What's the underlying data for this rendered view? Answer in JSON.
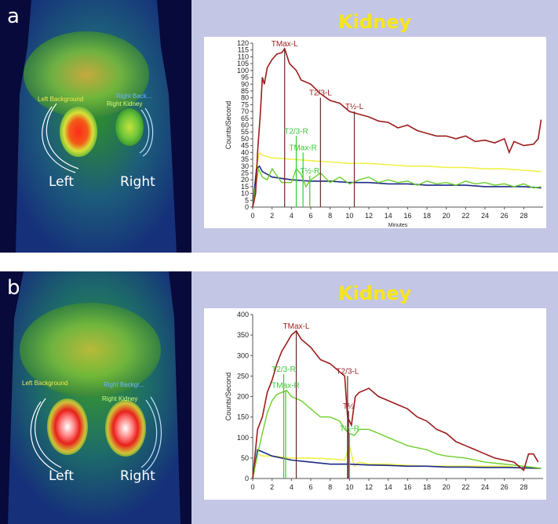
{
  "panels": [
    {
      "letter": "a",
      "image_labels": {
        "left": "Left",
        "right": "Right",
        "left_background": "Left Background",
        "right_background": "Right Back...",
        "right_kidney": "Right Kidney"
      }
    },
    {
      "letter": "b",
      "image_labels": {
        "left": "Left",
        "right": "Right",
        "left_background": "Left Background",
        "right_background": "Right Backgr...",
        "right_kidney": "Right Kidney"
      }
    }
  ],
  "chart_data": [
    {
      "type": "line",
      "title": "Kidney",
      "xlabel": "Minutes",
      "ylabel": "Counts/Second",
      "xlim": [
        0,
        30
      ],
      "ylim": [
        0,
        120
      ],
      "xticks": [
        0,
        2,
        4,
        6,
        8,
        10,
        12,
        14,
        16,
        18,
        20,
        22,
        24,
        26,
        28
      ],
      "yticks": [
        0,
        5,
        10,
        15,
        20,
        25,
        30,
        35,
        40,
        45,
        50,
        55,
        60,
        65,
        70,
        75,
        80,
        85,
        90,
        95,
        100,
        105,
        110,
        115,
        120
      ],
      "grid": false,
      "colors": {
        "left_kidney": "#9b1c1c",
        "right_kidney": "#6ccf2a",
        "yellow_curve": "#f0f048",
        "blue_curve": "#1c2a86",
        "marker_label_left": "#9b1c1c",
        "marker_label_right": "#37c937"
      },
      "series": [
        {
          "x": [
            0,
            0.3,
            0.5,
            0.8,
            1,
            1.2,
            1.5,
            2,
            2.5,
            3,
            3.3,
            3.8,
            4.5,
            5,
            6,
            7,
            8,
            9,
            10,
            11,
            12,
            13,
            14,
            15,
            16,
            17,
            18,
            19,
            20,
            21,
            22,
            23,
            24,
            25,
            26,
            26.5,
            27,
            28,
            29,
            29.5,
            29.8
          ],
          "y": [
            0,
            10,
            40,
            70,
            95,
            90,
            102,
            108,
            112,
            113,
            116,
            105,
            100,
            93,
            90,
            83,
            78,
            76,
            70,
            68,
            66,
            63,
            62,
            58,
            60,
            56,
            54,
            52,
            52,
            50,
            52,
            48,
            49,
            47,
            50,
            40,
            48,
            45,
            46,
            50,
            64
          ]
        },
        {
          "x": [
            0,
            0.3,
            0.6,
            1,
            1.5,
            2,
            3,
            4,
            4.5,
            5,
            5.5,
            6,
            7,
            8,
            9,
            10,
            11,
            12,
            13,
            14,
            15,
            16,
            17,
            18,
            19,
            20,
            21,
            22,
            23,
            24,
            25,
            26,
            27,
            28,
            29,
            29.8
          ],
          "y": [
            0,
            15,
            28,
            22,
            20,
            28,
            18,
            18,
            28,
            24,
            15,
            20,
            25,
            18,
            22,
            17,
            20,
            22,
            18,
            20,
            18,
            19,
            16,
            19,
            17,
            18,
            16,
            19,
            17,
            18,
            16,
            17,
            15,
            17,
            14,
            15
          ]
        },
        {
          "x": [
            0,
            0.4,
            0.7,
            1,
            2,
            4,
            6,
            8,
            10,
            12,
            14,
            16,
            18,
            20,
            22,
            24,
            26,
            28,
            29.8
          ],
          "y": [
            0,
            30,
            40,
            38,
            36,
            35,
            34,
            33,
            32,
            32,
            31,
            30,
            30,
            29,
            29,
            28,
            28,
            27,
            26
          ]
        },
        {
          "x": [
            0,
            0.4,
            0.7,
            1,
            2,
            4,
            6,
            8,
            10,
            12,
            14,
            16,
            18,
            20,
            22,
            24,
            26,
            28,
            29.8
          ],
          "y": [
            0,
            28,
            30,
            26,
            22,
            20,
            19,
            19,
            18,
            18,
            17,
            17,
            16,
            16,
            16,
            15,
            15,
            15,
            14
          ]
        }
      ],
      "markers": [
        {
          "label": "TMax-L",
          "x": 3.3,
          "y": 116,
          "side": "left"
        },
        {
          "label": "T2/3-L",
          "x": 7.0,
          "y": 80,
          "side": "left"
        },
        {
          "label": "T½-L",
          "x": 10.5,
          "y": 70,
          "side": "left"
        },
        {
          "label": "T2/3-R",
          "x": 4.5,
          "y": 52,
          "side": "right"
        },
        {
          "label": "TMax-R",
          "x": 5.2,
          "y": 40,
          "side": "right"
        },
        {
          "label": "T½-R",
          "x": 5.9,
          "y": 23,
          "side": "right"
        }
      ]
    },
    {
      "type": "line",
      "title": "Kidney",
      "xlabel": "",
      "ylabel": "Counts/Second",
      "xlim": [
        0,
        30
      ],
      "ylim": [
        0,
        400
      ],
      "xticks": [
        0,
        2,
        4,
        6,
        8,
        10,
        12,
        14,
        16,
        18,
        20,
        22,
        24,
        26,
        28
      ],
      "yticks": [
        0,
        50,
        100,
        150,
        200,
        250,
        300,
        350,
        400
      ],
      "grid": false,
      "colors": {
        "left_kidney": "#9b1c1c",
        "right_kidney": "#6ccf2a",
        "yellow_curve": "#f0f048",
        "blue_curve": "#1c2a86",
        "marker_label_left": "#9b1c1c",
        "marker_label_right": "#37c937"
      },
      "series": [
        {
          "x": [
            0,
            0.5,
            1,
            1.5,
            2,
            2.5,
            3,
            3.5,
            4,
            4.5,
            5,
            6,
            7,
            8,
            9,
            9.5,
            9.8,
            10.2,
            10.6,
            11,
            12,
            13,
            14,
            15,
            16,
            17,
            18,
            19,
            20,
            21,
            22,
            23,
            24,
            25,
            26,
            27,
            28,
            28.5,
            29,
            29.5
          ],
          "y": [
            0,
            120,
            150,
            210,
            240,
            280,
            310,
            330,
            350,
            360,
            340,
            320,
            290,
            280,
            260,
            250,
            150,
            130,
            200,
            210,
            220,
            200,
            190,
            180,
            170,
            150,
            140,
            120,
            110,
            90,
            80,
            70,
            60,
            50,
            45,
            40,
            20,
            60,
            60,
            40
          ]
        },
        {
          "x": [
            0,
            0.5,
            1,
            1.5,
            2,
            2.5,
            3,
            3.5,
            4,
            5,
            6,
            7,
            8,
            9,
            9.5,
            10,
            10.5,
            11,
            12,
            13,
            14,
            15,
            16,
            17,
            18,
            19,
            20,
            22,
            24,
            26,
            28,
            29.8
          ],
          "y": [
            0,
            60,
            110,
            160,
            190,
            205,
            210,
            215,
            200,
            190,
            170,
            150,
            150,
            140,
            120,
            110,
            105,
            120,
            120,
            110,
            100,
            90,
            80,
            75,
            70,
            60,
            55,
            50,
            40,
            35,
            30,
            25
          ]
        },
        {
          "x": [
            0,
            0.5,
            1,
            2,
            4,
            6,
            8,
            9.5,
            10,
            10.5,
            11,
            12,
            14,
            16,
            18,
            20,
            22,
            24,
            26,
            28,
            29.8
          ],
          "y": [
            0,
            60,
            55,
            55,
            50,
            50,
            48,
            45,
            80,
            30,
            40,
            35,
            35,
            32,
            30,
            30,
            30,
            30,
            30,
            25,
            25
          ]
        },
        {
          "x": [
            0,
            0.5,
            1,
            2,
            4,
            6,
            8,
            10,
            12,
            14,
            16,
            18,
            20,
            22,
            24,
            26,
            28,
            29.8
          ],
          "y": [
            0,
            70,
            65,
            55,
            45,
            40,
            35,
            35,
            33,
            32,
            30,
            30,
            28,
            28,
            27,
            27,
            26,
            25
          ]
        }
      ],
      "markers": [
        {
          "label": "TMax-L",
          "x": 4.5,
          "y": 360,
          "side": "left"
        },
        {
          "label": "T2/3-L",
          "x": 9.8,
          "y": 250,
          "side": "left"
        },
        {
          "label": "T½",
          "x": 9.9,
          "y": 165,
          "side": "left"
        },
        {
          "label": "T2/3-R",
          "x": 3.2,
          "y": 255,
          "side": "right"
        },
        {
          "label": "TMax-R",
          "x": 3.4,
          "y": 215,
          "side": "right"
        },
        {
          "label": "T½-R",
          "x": 10.0,
          "y": 110,
          "side": "right"
        }
      ]
    }
  ]
}
